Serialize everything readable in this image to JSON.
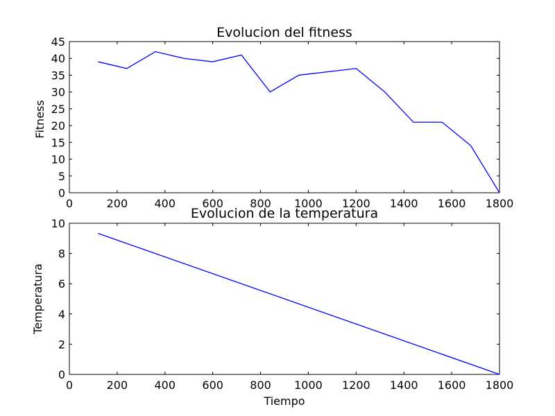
{
  "chart_data": [
    {
      "type": "line",
      "title": "Evolucion del fitness",
      "xlabel": "",
      "ylabel": "Fitness",
      "xlim": [
        0,
        1800
      ],
      "ylim": [
        0,
        45
      ],
      "xticks": [
        "0",
        "200",
        "400",
        "600",
        "800",
        "1000",
        "1200",
        "1400",
        "1600",
        "1800"
      ],
      "yticks": [
        "0",
        "5",
        "10",
        "15",
        "20",
        "25",
        "30",
        "35",
        "40",
        "45"
      ],
      "grid": false,
      "series": [
        {
          "color": "#0000ff",
          "x": [
            120,
            240,
            360,
            480,
            600,
            720,
            840,
            960,
            1200,
            1320,
            1440,
            1560,
            1680,
            1800
          ],
          "y": [
            39,
            37,
            42,
            40,
            39,
            41,
            30,
            35,
            37,
            30,
            21,
            21,
            14,
            0
          ]
        }
      ]
    },
    {
      "type": "line",
      "title": "Evolucion de la temperatura",
      "xlabel": "Tiempo",
      "ylabel": "Temperatura",
      "xlim": [
        0,
        1800
      ],
      "ylim": [
        0,
        10
      ],
      "xticks": [
        "0",
        "200",
        "400",
        "600",
        "800",
        "1000",
        "1200",
        "1400",
        "1600",
        "1800"
      ],
      "yticks": [
        "0",
        "2",
        "4",
        "6",
        "8",
        "10"
      ],
      "grid": false,
      "series": [
        {
          "color": "#0000ff",
          "x": [
            120,
            1800
          ],
          "y": [
            9.33,
            0
          ]
        }
      ]
    }
  ]
}
